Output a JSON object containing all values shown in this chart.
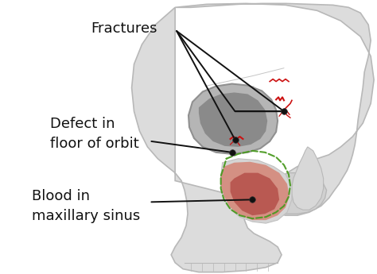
{
  "background_color": "#ffffff",
  "skull_fill": "#dcdcdc",
  "skull_edge": "#b8b8b8",
  "orbit_fill": "#a8a8a8",
  "orbit_inner": "#888888",
  "sinus_fill": "#c8c8c8",
  "blood_light": "#d4897a",
  "blood_dark": "#b5504a",
  "blood_edge": "#aa3030",
  "fracture_red": "#cc1111",
  "green_dash": "#4a9a20",
  "ann_color": "#111111",
  "dot_color": "#111111",
  "labels": {
    "fractures": "Fractures",
    "defect": "Defect in\nfloor of orbit",
    "blood": "Blood in\nmaxillary sinus"
  },
  "figsize": [
    4.74,
    3.45
  ],
  "dpi": 100
}
